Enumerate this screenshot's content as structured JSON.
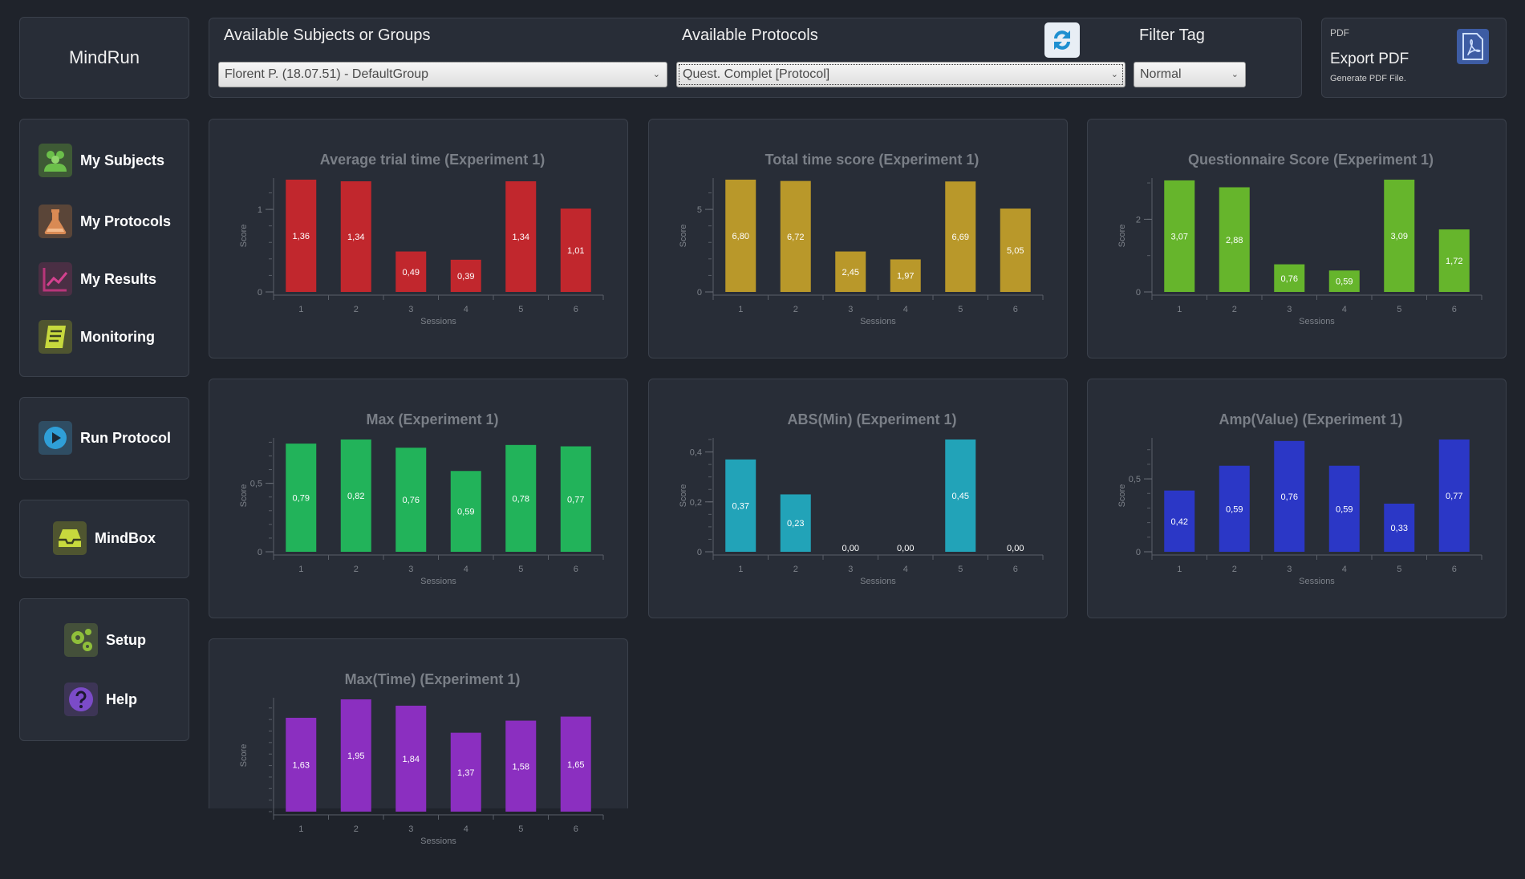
{
  "app": {
    "title": "MindRun"
  },
  "sidebar": {
    "items": [
      {
        "label": "My Subjects",
        "icon": "users-icon",
        "color": "#6bbf4a"
      },
      {
        "label": "My Protocols",
        "icon": "flask-icon",
        "color": "#d98a54"
      },
      {
        "label": "My Results",
        "icon": "chart-line-icon",
        "color": "#b8367a"
      },
      {
        "label": "Monitoring",
        "icon": "notebook-icon",
        "color": "#c7d93d"
      },
      {
        "label": "Run Protocol",
        "icon": "play-icon",
        "color": "#2f9fd8"
      },
      {
        "label": "MindBox",
        "icon": "inbox-icon",
        "color": "#c7d93d"
      },
      {
        "label": "Setup",
        "icon": "gears-icon",
        "color": "#8fbf3a"
      },
      {
        "label": "Help",
        "icon": "help-icon",
        "color": "#7b4bc8"
      }
    ]
  },
  "filters": {
    "subjects_label": "Available Subjects or Groups",
    "subjects_value": "Florent P. (18.07.51) - DefaultGroup",
    "protocols_label": "Available Protocols",
    "protocols_value": "Quest. Complet [Protocol]",
    "tag_label": "Filter Tag",
    "tag_value": "Normal"
  },
  "pdf": {
    "small_label": "PDF",
    "title": "Export PDF",
    "subtitle": "Generate PDF File."
  },
  "chart_data": [
    {
      "type": "bar",
      "title": "Average trial time (Experiment 1)",
      "xlabel": "Sessions",
      "ylabel": "Score",
      "categories": [
        "1",
        "2",
        "3",
        "4",
        "5",
        "6"
      ],
      "values": [
        1.36,
        1.34,
        0.49,
        0.39,
        1.34,
        1.01
      ],
      "labels": [
        "1,36",
        "1,34",
        "0,49",
        "0,39",
        "1,34",
        "1,01"
      ],
      "ylim": [
        0,
        1.36
      ],
      "yticks": [
        0,
        1
      ],
      "ytick_labels": [
        "0",
        "1"
      ],
      "minor_step": 0.2,
      "color": "#c1272d"
    },
    {
      "type": "bar",
      "title": "Total time score (Experiment 1)",
      "xlabel": "Sessions",
      "ylabel": "Score",
      "categories": [
        "1",
        "2",
        "3",
        "4",
        "5",
        "6"
      ],
      "values": [
        6.8,
        6.72,
        2.45,
        1.97,
        6.69,
        5.05
      ],
      "labels": [
        "6,80",
        "6,72",
        "2,45",
        "1,97",
        "6,69",
        "5,05"
      ],
      "ylim": [
        0,
        6.8
      ],
      "yticks": [
        0,
        5
      ],
      "ytick_labels": [
        "0",
        "5"
      ],
      "minor_step": 1,
      "color": "#b9982a"
    },
    {
      "type": "bar",
      "title": "Questionnaire Score (Experiment 1)",
      "xlabel": "Sessions",
      "ylabel": "Score",
      "categories": [
        "1",
        "2",
        "3",
        "4",
        "5",
        "6"
      ],
      "values": [
        3.07,
        2.88,
        0.76,
        0.59,
        3.09,
        1.72
      ],
      "labels": [
        "3,07",
        "2,88",
        "0,76",
        "0,59",
        "3,09",
        "1,72"
      ],
      "ylim": [
        0,
        3.09
      ],
      "yticks": [
        0,
        2
      ],
      "ytick_labels": [
        "0",
        "2"
      ],
      "minor_step": 1,
      "color": "#66b52c"
    },
    {
      "type": "bar",
      "title": "Max (Experiment 1)",
      "xlabel": "Sessions",
      "ylabel": "Score",
      "categories": [
        "1",
        "2",
        "3",
        "4",
        "5",
        "6"
      ],
      "values": [
        0.79,
        0.82,
        0.76,
        0.59,
        0.78,
        0.77
      ],
      "labels": [
        "0,79",
        "0,82",
        "0,76",
        "0,59",
        "0,78",
        "0,77"
      ],
      "ylim": [
        0,
        0.82
      ],
      "yticks": [
        0,
        0.5
      ],
      "ytick_labels": [
        "0",
        "0,5"
      ],
      "minor_step": 0.1,
      "color": "#22b35a"
    },
    {
      "type": "bar",
      "title": "ABS(Min) (Experiment 1)",
      "xlabel": "Sessions",
      "ylabel": "Score",
      "categories": [
        "1",
        "2",
        "3",
        "4",
        "5",
        "6"
      ],
      "values": [
        0.37,
        0.23,
        0.0,
        0.0,
        0.45,
        0.0
      ],
      "labels": [
        "0,37",
        "0,23",
        "0,00",
        "0,00",
        "0,45",
        "0,00"
      ],
      "ylim": [
        0,
        0.45
      ],
      "yticks": [
        0,
        0.2,
        0.4
      ],
      "ytick_labels": [
        "0",
        "0,2",
        "0,4"
      ],
      "minor_step": 0.05,
      "color": "#22a3b8"
    },
    {
      "type": "bar",
      "title": "Amp(Value) (Experiment 1)",
      "xlabel": "Sessions",
      "ylabel": "Score",
      "categories": [
        "1",
        "2",
        "3",
        "4",
        "5",
        "6"
      ],
      "values": [
        0.42,
        0.59,
        0.76,
        0.59,
        0.33,
        0.77
      ],
      "labels": [
        "0,42",
        "0,59",
        "0,76",
        "0,59",
        "0,33",
        "0,77"
      ],
      "ylim": [
        0,
        0.77
      ],
      "yticks": [
        0,
        0.5
      ],
      "ytick_labels": [
        "0",
        "0,5"
      ],
      "minor_step": 0.1,
      "color": "#2b37c6"
    },
    {
      "type": "bar",
      "title": "Max(Time) (Experiment 1)",
      "xlabel": "Sessions",
      "ylabel": "Score",
      "categories": [
        "1",
        "2",
        "3",
        "4",
        "5",
        "6"
      ],
      "values": [
        1.63,
        1.95,
        1.84,
        1.37,
        1.58,
        1.65
      ],
      "labels": [
        "1,63",
        "1,95",
        "1,84",
        "1,37",
        "1,58",
        "1,65"
      ],
      "ylim": [
        0,
        1.95
      ],
      "yticks": [],
      "ytick_labels": [],
      "minor_step": 0.2,
      "color": "#8b2fc0"
    }
  ]
}
